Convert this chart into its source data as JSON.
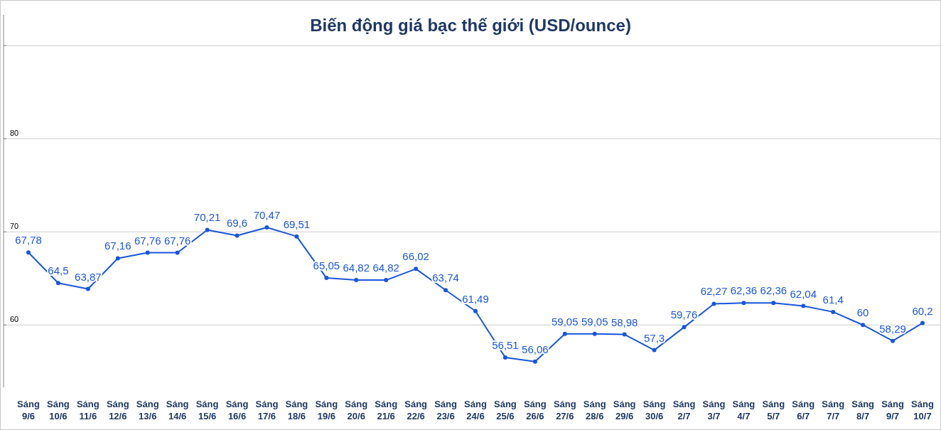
{
  "chart_data": {
    "type": "line",
    "title": "Biến động giá bạc thế giới (USD/ounce)",
    "categories": [
      "Sáng 9/6",
      "Sáng 10/6",
      "Sáng 11/6",
      "Sáng 12/6",
      "Sáng 13/6",
      "Sáng 14/6",
      "Sáng 15/6",
      "Sáng 16/6",
      "Sáng 17/6",
      "Sáng 18/6",
      "Sáng 19/6",
      "Sáng 20/6",
      "Sáng 21/6",
      "Sáng 22/6",
      "Sáng 23/6",
      "Sáng 24/6",
      "Sáng 25/6",
      "Sáng 26/6",
      "Sáng 27/6",
      "Sáng 28/6",
      "Sáng 29/6",
      "Sáng 30/6",
      "Sáng 2/7",
      "Sáng 3/7",
      "Sáng 4/7",
      "Sáng 5/7",
      "Sáng 6/7",
      "Sáng 7/7",
      "Sáng 8/7",
      "Sáng 9/7",
      "Sáng 10/7"
    ],
    "series": [
      {
        "color": "#1a56db",
        "values": [
          67.78,
          64.5,
          63.87,
          67.16,
          67.76,
          67.76,
          70.21,
          69.6,
          70.47,
          69.51,
          65.05,
          64.82,
          64.82,
          66.02,
          63.74,
          61.49,
          56.51,
          56.06,
          59.05,
          59.05,
          58.98,
          57.3,
          59.76,
          62.27,
          62.36,
          62.36,
          62.04,
          61.4,
          60,
          58.29,
          60.2
        ],
        "value_labels": [
          "67,78",
          "64,5",
          "63,87",
          "67,16",
          "67,76",
          "67,76",
          "70,21",
          "69,6",
          "70,47",
          "69,51",
          "65,05",
          "64,82",
          "64,82",
          "66,02",
          "63,74",
          "61,49",
          "56,51",
          "56,06",
          "59,05",
          "59,05",
          "58,98",
          "57,3",
          "59,76",
          "62,27",
          "62,36",
          "62,36",
          "62,04",
          "61,4",
          "60",
          "58,29",
          "60,2"
        ]
      }
    ],
    "ylim": [
      53.3,
      93.3
    ],
    "yticks": [
      60,
      70,
      80,
      {
        "value": 90,
        "label": null
      }
    ],
    "grid": "y",
    "marker": "circle",
    "line_style": "solid"
  }
}
